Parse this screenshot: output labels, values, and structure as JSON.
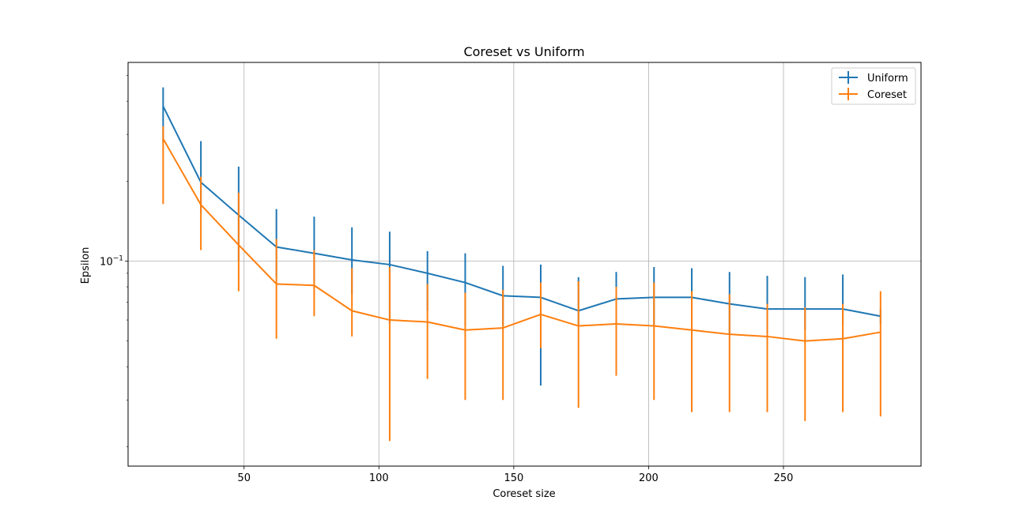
{
  "chart_data": {
    "type": "line",
    "title": "Coreset vs Uniform",
    "xlabel": "Coreset size",
    "ylabel": "Epsilon",
    "xlim": [
      7,
      301
    ],
    "ylim": [
      0.0169,
      0.56
    ],
    "yscale": "log",
    "grid": true,
    "legend_position": "top-right",
    "x_ticks": [
      50,
      100,
      150,
      200,
      250
    ],
    "x_tick_labels": [
      "50",
      "100",
      "150",
      "200",
      "250"
    ],
    "y_ticks": [
      0.1
    ],
    "y_tick_labels": [
      "10",
      "−1"
    ],
    "x": [
      20,
      34,
      48,
      62,
      76,
      90,
      104,
      118,
      132,
      146,
      160,
      174,
      188,
      202,
      216,
      230,
      244,
      258,
      272,
      286
    ],
    "series": [
      {
        "name": "Uniform",
        "color": "#1f77b4",
        "values": [
          0.383,
          0.198,
          0.149,
          0.113,
          0.107,
          0.101,
          0.097,
          0.09,
          0.083,
          0.074,
          0.073,
          0.065,
          0.072,
          0.073,
          0.073,
          0.069,
          0.066,
          0.066,
          0.066,
          0.062
        ],
        "lower": [
          0.28,
          0.152,
          0.1,
          0.087,
          0.084,
          0.075,
          0.058,
          0.065,
          0.057,
          0.057,
          0.034,
          0.057,
          0.057,
          0.057,
          0.058,
          0.053,
          0.054,
          0.055,
          0.057,
          0.058
        ],
        "upper": [
          0.451,
          0.283,
          0.227,
          0.157,
          0.147,
          0.134,
          0.129,
          0.109,
          0.107,
          0.096,
          0.097,
          0.087,
          0.091,
          0.095,
          0.094,
          0.091,
          0.088,
          0.087,
          0.089,
          0.066
        ]
      },
      {
        "name": "Coreset",
        "color": "#ff7f0e",
        "values": [
          0.289,
          0.163,
          0.115,
          0.082,
          0.081,
          0.065,
          0.06,
          0.059,
          0.055,
          0.056,
          0.063,
          0.057,
          0.058,
          0.057,
          0.055,
          0.053,
          0.052,
          0.05,
          0.051,
          0.054
        ],
        "lower": [
          0.164,
          0.11,
          0.077,
          0.051,
          0.062,
          0.052,
          0.021,
          0.036,
          0.03,
          0.03,
          0.047,
          0.028,
          0.037,
          0.03,
          0.027,
          0.027,
          0.027,
          0.025,
          0.027,
          0.026
        ],
        "upper": [
          0.322,
          0.208,
          0.181,
          0.121,
          0.11,
          0.094,
          0.095,
          0.082,
          0.076,
          0.078,
          0.083,
          0.084,
          0.08,
          0.083,
          0.077,
          0.075,
          0.069,
          0.067,
          0.069,
          0.077
        ]
      }
    ]
  }
}
